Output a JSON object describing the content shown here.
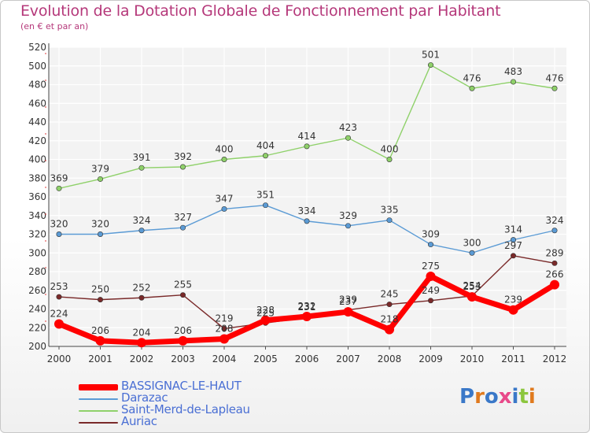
{
  "title": "Evolution de la Dotation Globale de Fonctionnement par Habitant",
  "subtitle": "(en € et par an)",
  "logo_text": "Proxiti",
  "chart_data": {
    "type": "line",
    "x": [
      "2000",
      "2001",
      "2002",
      "2003",
      "2004",
      "2005",
      "2006",
      "2007",
      "2008",
      "2009",
      "2010",
      "2011",
      "2012"
    ],
    "ylim": [
      200,
      520
    ],
    "yticks": [
      200,
      220,
      240,
      260,
      280,
      300,
      320,
      340,
      360,
      380,
      400,
      420,
      440,
      460,
      480,
      500,
      520
    ],
    "grid": true,
    "legend_position": "bottom-left",
    "series": [
      {
        "name": "BASSIGNAC-LE-HAUT",
        "color": "#ff0000",
        "values": [
          224,
          206,
          204,
          206,
          208,
          228,
          232,
          237,
          218,
          275,
          253,
          239,
          266
        ]
      },
      {
        "name": "Darazac",
        "color": "#5b9bd5",
        "values": [
          320,
          320,
          324,
          327,
          347,
          351,
          334,
          329,
          335,
          309,
          300,
          314,
          324
        ]
      },
      {
        "name": "Saint-Merd-de-Lapleau",
        "color": "#8fd16a",
        "values": [
          369,
          379,
          391,
          392,
          400,
          404,
          414,
          423,
          400,
          501,
          476,
          483,
          476
        ]
      },
      {
        "name": "Auriac",
        "color": "#7a2a2a",
        "values": [
          253,
          250,
          252,
          255,
          219,
          225,
          231,
          239,
          245,
          249,
          254,
          297,
          289
        ]
      }
    ]
  }
}
